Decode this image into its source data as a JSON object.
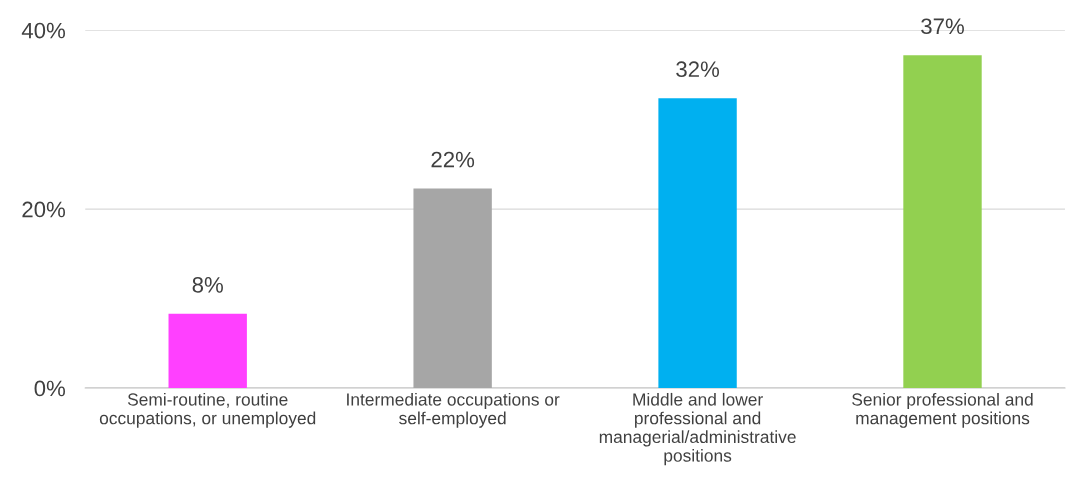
{
  "chart_data": {
    "type": "bar",
    "categories": [
      "Semi-routine, routine occupations, or unemployed",
      "Intermediate occupations or self-employed",
      "Middle and lower professional and managerial/administrative positions",
      "Senior professional and management positions"
    ],
    "values": [
      8.3,
      22.3,
      32.4,
      37.2
    ],
    "colors": [
      "#ff40ff",
      "#a6a6a6",
      "#00b0f0",
      "#92d050"
    ],
    "value_labels": [
      "8%",
      "22%",
      "32%",
      "37%"
    ],
    "ylim": [
      0,
      40
    ],
    "yticks": [
      {
        "value": 0,
        "label": "0%"
      },
      {
        "value": 20,
        "label": "20%"
      },
      {
        "value": 40,
        "label": "40%"
      }
    ],
    "grid": "y",
    "legend": false
  }
}
